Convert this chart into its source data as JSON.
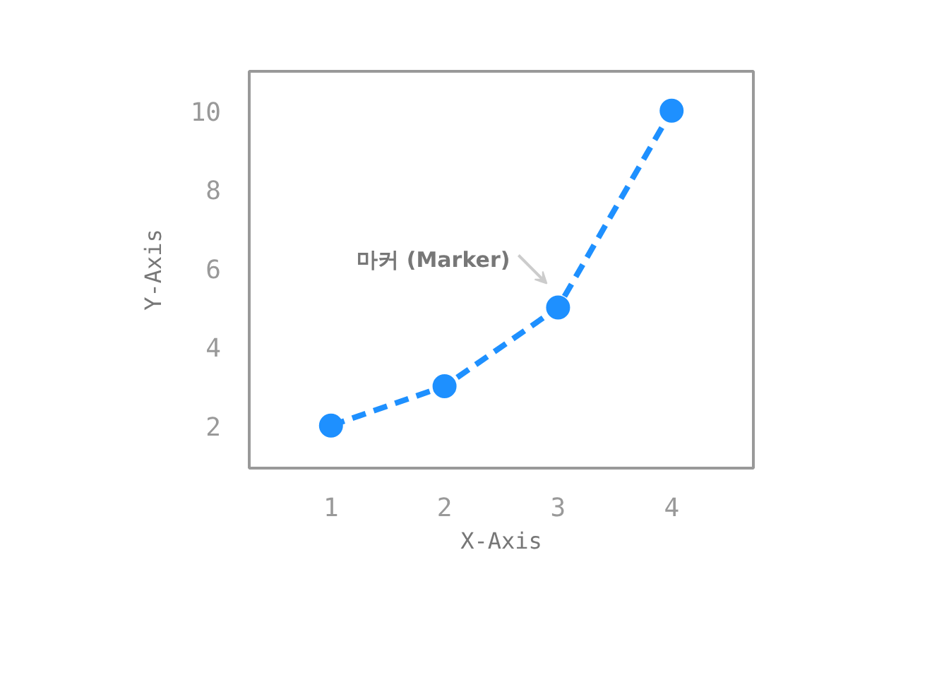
{
  "chart_data": {
    "type": "line",
    "xlabel": "X-Axis",
    "ylabel": "Y-Axis",
    "x": [
      1,
      2,
      3,
      4
    ],
    "series": [
      {
        "color": "#1e90ff",
        "values": [
          2,
          3,
          5,
          10
        ]
      }
    ],
    "xlim": [
      0.28,
      4.72
    ],
    "ylim": [
      0.92,
      11.0
    ],
    "xticks": [
      1,
      2,
      3,
      4
    ],
    "yticks": [
      2,
      4,
      6,
      8,
      10
    ],
    "marker": "circle",
    "line_style": "dashed",
    "annotations": [
      {
        "text": "마커 (Marker)",
        "x": 3,
        "y": 5
      }
    ]
  }
}
